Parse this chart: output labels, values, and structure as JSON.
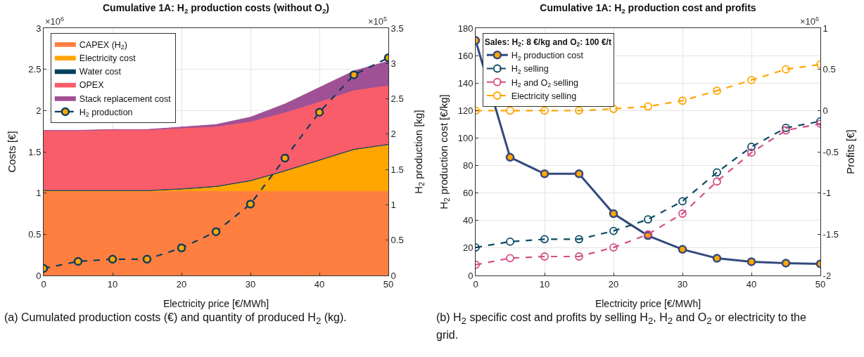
{
  "chart_data": [
    {
      "type": "area",
      "stacked": true,
      "title": "Cumulative 1A: H$_{2}$ production costs (without O$_{2}$)",
      "xlabel": "Electricity price [€/MWh]",
      "ylabel": "Costs [€]",
      "y2label": "H$_{2}$ production [kg]",
      "x": [
        0,
        5,
        10,
        15,
        20,
        25,
        30,
        35,
        40,
        45,
        50
      ],
      "series": [
        {
          "name": "CAPEX (H$_{2}$)",
          "color": "#ff7f41",
          "values": [
            1.02,
            1.02,
            1.02,
            1.02,
            1.02,
            1.02,
            1.02,
            1.02,
            1.02,
            1.02,
            1.02
          ]
        },
        {
          "name": "Electricity cost",
          "color": "#ffa600",
          "values": [
            0,
            0,
            0,
            0,
            0.02,
            0.05,
            0.12,
            0.24,
            0.37,
            0.5,
            0.56
          ]
        },
        {
          "name": "Water cost",
          "color": "#003f5c",
          "values": [
            0.01,
            0.01,
            0.01,
            0.01,
            0.01,
            0.01,
            0.01,
            0.01,
            0.01,
            0.01,
            0.01
          ]
        },
        {
          "name": "OPEX",
          "color": "#f95d6a",
          "values": [
            0.72,
            0.72,
            0.73,
            0.73,
            0.73,
            0.72,
            0.71,
            0.7,
            0.7,
            0.71,
            0.71
          ]
        },
        {
          "name": "Stack replacement cost",
          "color": "#a05195",
          "values": [
            0.01,
            0.01,
            0.01,
            0.01,
            0.02,
            0.03,
            0.06,
            0.11,
            0.18,
            0.24,
            0.3
          ]
        },
        {
          "name": "H$_{2}$ production",
          "type": "line",
          "axis": "y2",
          "line_style": "dashed",
          "marker": "circle",
          "color": "#0b3c5d",
          "values": [
            0.1,
            0.2,
            0.23,
            0.23,
            0.39,
            0.62,
            1.01,
            1.66,
            2.31,
            2.84,
            3.08
          ]
        }
      ],
      "xlim": [
        0,
        50
      ],
      "xticks": [
        0,
        10,
        20,
        30,
        40,
        50
      ],
      "ylim": [
        0,
        3
      ],
      "yticks": [
        0,
        0.5,
        1,
        1.5,
        2,
        2.5,
        3
      ],
      "y2lim": [
        0,
        3.5
      ],
      "y2ticks": [
        0,
        0.5,
        1,
        1.5,
        2,
        2.5,
        3,
        3.5
      ],
      "grid": true,
      "legend": "top left",
      "annotations": [
        "×10$^{6}$",
        "×10$^{5}$",
        "(a)  Cumulated production costs (€) and quantity of produced H$_{2}$ (kg)."
      ]
    },
    {
      "type": "line",
      "title": "Cumulative 1A: H$_{2}$ production cost and profits",
      "xlabel": "Electricity price [€/MWh]",
      "ylabel": "H$_{2}$ production cost [€/kg]",
      "y2label": "Profits [€]",
      "legend_title": "Sales: H$_{2}$: 8 €/kg and O$_{2}$: 100 €/t",
      "x": [
        0,
        5,
        10,
        15,
        20,
        25,
        30,
        35,
        40,
        45,
        50
      ],
      "series": [
        {
          "name": "H$_{2}$ production cost",
          "color": "#34497e",
          "line_style": "solid",
          "marker": "circle",
          "values": [
            171,
            86,
            74,
            74,
            45,
            29,
            19,
            12.5,
            10,
            9,
            8.5
          ]
        },
        {
          "name": "H$_{2}$ selling",
          "color": "#0b4a63",
          "axis": "y2",
          "line_style": "dashed",
          "marker": "circle",
          "values": [
            -1.66,
            -1.59,
            -1.56,
            -1.56,
            -1.46,
            -1.32,
            -1.1,
            -0.75,
            -0.44,
            -0.21,
            -0.13
          ]
        },
        {
          "name": "H$_{2}$ and O$_{2}$ selling",
          "color": "#d45087",
          "axis": "y2",
          "line_style": "dashed",
          "marker": "circle",
          "values": [
            -1.87,
            -1.79,
            -1.77,
            -1.77,
            -1.66,
            -1.5,
            -1.25,
            -0.86,
            -0.51,
            -0.24,
            -0.16
          ]
        },
        {
          "name": "Electricity selling",
          "color": "#ffa600",
          "axis": "y2",
          "line_style": "dashed",
          "marker": "circle",
          "values": [
            0,
            0,
            0,
            0,
            0.02,
            0.05,
            0.12,
            0.24,
            0.37,
            0.5,
            0.56
          ]
        }
      ],
      "xlim": [
        0,
        50
      ],
      "xticks": [
        0,
        10,
        20,
        30,
        40,
        50
      ],
      "ylim": [
        0,
        180
      ],
      "yticks": [
        0,
        20,
        40,
        60,
        80,
        100,
        120,
        140,
        160,
        180
      ],
      "y2lim": [
        -2,
        1
      ],
      "y2ticks": [
        -2,
        -1.5,
        -1,
        -0.5,
        0,
        0.5,
        1
      ],
      "grid": true,
      "legend": "top left",
      "annotations": [
        "×10$^{6}$",
        "(b)  H$_{2}$ specific cost and profits by selling H$_{2}$, H$_{2}$ and O$_{2}$ or electricity to the grid."
      ]
    }
  ]
}
